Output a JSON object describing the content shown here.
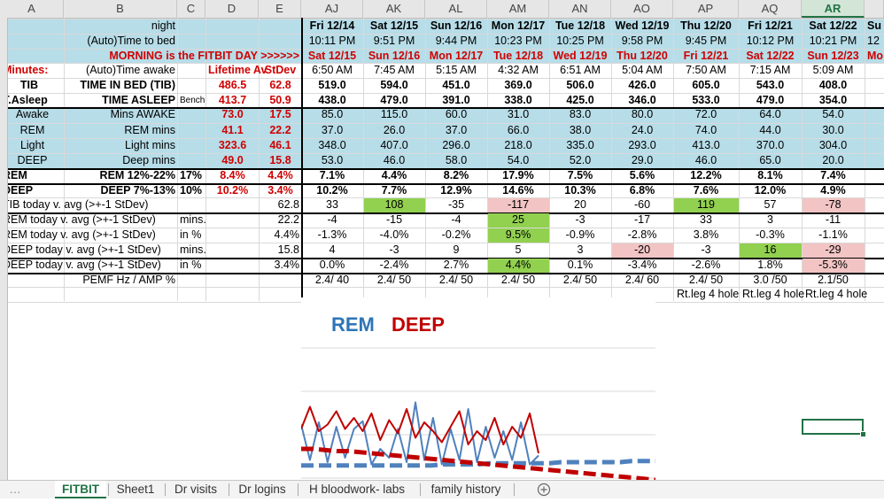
{
  "columns": [
    "A",
    "B",
    "C",
    "D",
    "E",
    "AJ",
    "AK",
    "AL",
    "AM",
    "AN",
    "AO",
    "AP",
    "AQ",
    "AR"
  ],
  "selected_column": "AR",
  "rows": {
    "night": {
      "b": "night",
      "days": [
        "Fri 12/14",
        "Sat 12/15",
        "Sun 12/16",
        "Mon 12/17",
        "Tue 12/18",
        "Wed 12/19",
        "Thu 12/20",
        "Fri 12/21",
        "Sat 12/22",
        "Su"
      ]
    },
    "bed": {
      "b": "(Auto)Time to bed",
      "days": [
        "10:11 PM",
        "9:51 PM",
        "9:44 PM",
        "10:23 PM",
        "10:25 PM",
        "9:58 PM",
        "9:45 PM",
        "10:12 PM",
        "10:21 PM",
        "12"
      ]
    },
    "morning": {
      "b": "MORNING is the  FITBIT DAY >>>>>>",
      "days": [
        "Sat 12/15",
        "Sun 12/16",
        "Mon 12/17",
        "Tue 12/18",
        "Wed 12/19",
        "Thu 12/20",
        "Fri 12/21",
        "Sat 12/22",
        "Sun 12/23",
        "Mo"
      ]
    },
    "awake_time": {
      "a": "Minutes:",
      "b": "(Auto)Time awake",
      "d": "Lifetime Av",
      "e": "StDev",
      "days": [
        "6:50 AM",
        "7:45 AM",
        "5:15 AM",
        "4:32 AM",
        "6:51 AM",
        "5:04 AM",
        "7:50 AM",
        "7:15 AM",
        "5:09 AM"
      ]
    },
    "tib": {
      "a": "TIB",
      "b": "TIME IN BED (TIB)",
      "d": "486.5",
      "e": "62.8",
      "days": [
        "519.0",
        "594.0",
        "451.0",
        "369.0",
        "506.0",
        "426.0",
        "605.0",
        "543.0",
        "408.0"
      ]
    },
    "asleep": {
      "a": "T.Asleep",
      "b": "TIME ASLEEP",
      "c": "Bench",
      "d": "413.7",
      "e": "50.9",
      "days": [
        "438.0",
        "479.0",
        "391.0",
        "338.0",
        "425.0",
        "346.0",
        "533.0",
        "479.0",
        "354.0"
      ]
    },
    "awake": {
      "a": "Awake",
      "b": "Mins AWAKE",
      "d": "73.0",
      "e": "17.5",
      "days": [
        "85.0",
        "115.0",
        "60.0",
        "31.0",
        "83.0",
        "80.0",
        "72.0",
        "64.0",
        "54.0"
      ]
    },
    "rem": {
      "a": "REM",
      "b": "REM mins",
      "d": "41.1",
      "e": "22.2",
      "days": [
        "37.0",
        "26.0",
        "37.0",
        "66.0",
        "38.0",
        "24.0",
        "74.0",
        "44.0",
        "30.0"
      ]
    },
    "light": {
      "a": "Light",
      "b": "Light mins",
      "d": "323.6",
      "e": "46.1",
      "days": [
        "348.0",
        "407.0",
        "296.0",
        "218.0",
        "335.0",
        "293.0",
        "413.0",
        "370.0",
        "304.0"
      ]
    },
    "deep": {
      "a": "DEEP",
      "b": "Deep mins",
      "d": "49.0",
      "e": "15.8",
      "days": [
        "53.0",
        "46.0",
        "58.0",
        "54.0",
        "52.0",
        "29.0",
        "46.0",
        "65.0",
        "20.0"
      ]
    },
    "rem_pct": {
      "a": "REM",
      "b": "REM 12%-22%",
      "c": "17%",
      "d": "8.4%",
      "e": "4.4%",
      "days": [
        "7.1%",
        "4.4%",
        "8.2%",
        "17.9%",
        "7.5%",
        "5.6%",
        "12.2%",
        "8.1%",
        "7.4%"
      ]
    },
    "deep_pct": {
      "a": "DEEP",
      "b": "DEEP 7%-13%",
      "c": "10%",
      "d": "10.2%",
      "e": "3.4%",
      "days": [
        "10.2%",
        "7.7%",
        "12.9%",
        "14.6%",
        "10.3%",
        "6.8%",
        "7.6%",
        "12.0%",
        "4.9%"
      ]
    },
    "tib_today": {
      "a": "TIB today v. avg (>+-1 StDev)",
      "e": "62.8",
      "days": [
        "33",
        "108",
        "-35",
        "-117",
        "20",
        "-60",
        "119",
        "57",
        "-78"
      ]
    },
    "rem_today_mins": {
      "a": "REM today v. avg (>+-1 StDev)",
      "c": "mins.",
      "e": "22.2",
      "days": [
        "-4",
        "-15",
        "-4",
        "25",
        "-3",
        "-17",
        "33",
        "3",
        "-11"
      ]
    },
    "rem_today_pct": {
      "a": "REM today v. avg (>+-1 StDev)",
      "c": "in %",
      "e": "4.4%",
      "days": [
        "-1.3%",
        "-4.0%",
        "-0.2%",
        "9.5%",
        "-0.9%",
        "-2.8%",
        "3.8%",
        "-0.3%",
        "-1.1%"
      ]
    },
    "deep_today_mins": {
      "a": "DEEP today v. avg (>+-1 StDev)",
      "c": "mins.",
      "e": "15.8",
      "days": [
        "4",
        "-3",
        "9",
        "5",
        "3",
        "-20",
        "-3",
        "16",
        "-29"
      ]
    },
    "deep_today_pct": {
      "a": "DEEP today v. avg (>+-1 StDev)",
      "c": "in %",
      "e": "3.4%",
      "days": [
        "0.0%",
        "-2.4%",
        "2.7%",
        "4.4%",
        "0.1%",
        "-3.4%",
        "-2.6%",
        "1.8%",
        "-5.3%"
      ]
    },
    "pemf": {
      "b": "PEMF Hz / AMP %",
      "days": [
        "2.4/ 40",
        "2.4/ 50",
        "2.4/ 50",
        "2.4/ 50",
        "2.4/ 50",
        "2.4/ 60",
        "2.4/ 50",
        "3.0 /50",
        "2.1/50"
      ]
    },
    "notes": {
      "days": [
        "",
        "",
        "",
        "",
        "",
        "",
        "Rt.leg 4 hole",
        "Rt.leg 4 hole",
        "Rt.leg 4 hole"
      ]
    }
  },
  "chart": {
    "legend_rem": "REM",
    "legend_deep": "DEEP",
    "rem_color": "#4f81bd",
    "deep_color": "#c00000"
  },
  "chart_data": {
    "type": "line",
    "title": "",
    "xlabel": "",
    "ylabel": "",
    "series": [
      {
        "name": "REM",
        "values": [
          42,
          10,
          44,
          8,
          40,
          12,
          38,
          45,
          6,
          20,
          12,
          38,
          8,
          62,
          10,
          48,
          6,
          38,
          10,
          56,
          8,
          40,
          12,
          36,
          10,
          44,
          6,
          14
        ]
      },
      {
        "name": "DEEP",
        "values": [
          38,
          58,
          36,
          42,
          54,
          38,
          48,
          36,
          52,
          28,
          46,
          34,
          56,
          30,
          44,
          36,
          26,
          40,
          54,
          24,
          36,
          28,
          48,
          24,
          40,
          30,
          52,
          16
        ]
      },
      {
        "name": "REM",
        "values": [
          5,
          5,
          5,
          5,
          5,
          5,
          5,
          5,
          5,
          5,
          5,
          5,
          6,
          6,
          6,
          6,
          7,
          7,
          7,
          7,
          7,
          7,
          8,
          8,
          8,
          8,
          8,
          8,
          9,
          9,
          9
        ]
      },
      {
        "name": "DEEP",
        "values": [
          20,
          20,
          19,
          18,
          18,
          17,
          16,
          15,
          14,
          13,
          12,
          11,
          10,
          9,
          8,
          7,
          6,
          5,
          4,
          3,
          2,
          1,
          0,
          -1,
          -2,
          -3,
          -4,
          -5,
          -6,
          -7,
          -8
        ]
      }
    ]
  },
  "tabs": [
    "FITBIT",
    "Sheet1",
    "Dr visits",
    "Dr logins",
    "H bloodwork- labs",
    "family history"
  ],
  "active_tab": "FITBIT",
  "add_sheet_icon": "plus-circle-icon"
}
